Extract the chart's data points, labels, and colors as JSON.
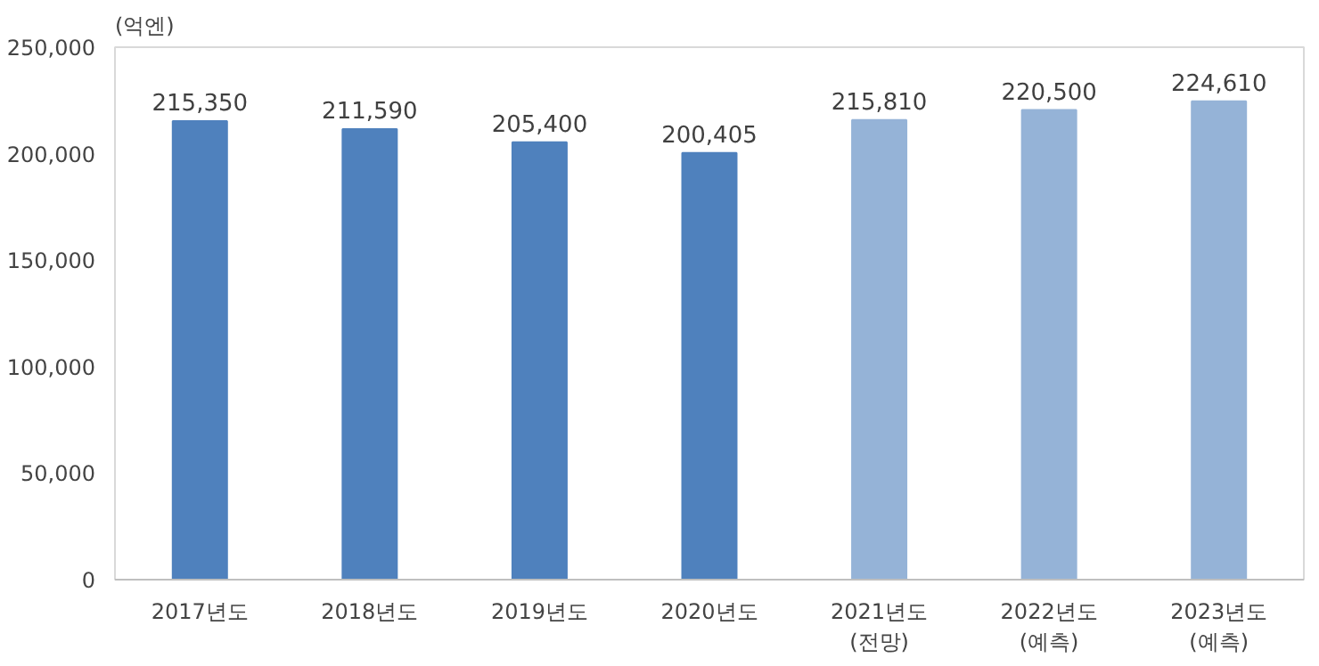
{
  "chart_data": {
    "type": "bar",
    "ylabel": "(억엔)",
    "categories": [
      "2017년도",
      "2018년도",
      "2019년도",
      "2020년도",
      "2021년도\n(전망)",
      "2022년도\n(예측)",
      "2023년도\n(예측)"
    ],
    "values": [
      215350,
      211590,
      205400,
      200405,
      215810,
      220500,
      224610
    ],
    "colors": [
      "#4f81bd",
      "#4f81bd",
      "#4f81bd",
      "#4f81bd",
      "#95b3d7",
      "#95b3d7",
      "#95b3d7"
    ],
    "ylim": [
      0,
      250000
    ],
    "yticks": [
      {
        "value": 0,
        "label": "0"
      },
      {
        "value": 50000,
        "label": "50,000"
      },
      {
        "value": 100000,
        "label": "100,000"
      },
      {
        "value": 150000,
        "label": "150,000"
      },
      {
        "value": 200000,
        "label": "200,000"
      },
      {
        "value": 250000,
        "label": "250,000"
      }
    ],
    "value_labels": [
      "215,350",
      "211,590",
      "205,400",
      "200,405",
      "215,810",
      "220,500",
      "224,610"
    ],
    "grid": false
  }
}
